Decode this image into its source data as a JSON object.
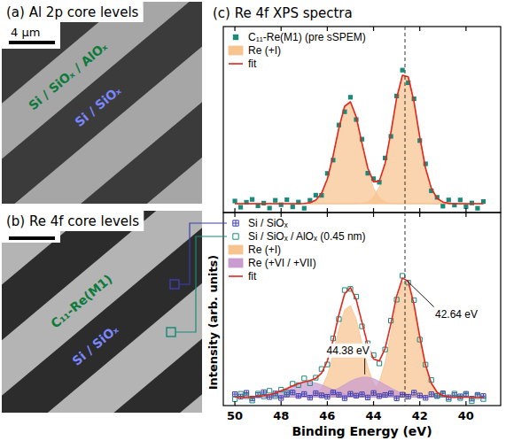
{
  "images": [
    {
      "label": "(a) Al 2p core levels",
      "scale_bar": "4 µm",
      "regions": [
        "Si / SiOₓ / AlOₓ",
        "Si / SiOₓ"
      ]
    },
    {
      "label": "(b) Re 4f core levels",
      "regions": [
        "C₁₁-Re(M1)",
        "Si / SiOₓ"
      ]
    }
  ],
  "chart_data": [
    {
      "type": "line",
      "title": "(c) Re 4f XPS spectra",
      "ylabel": "Intensity (arb. units)",
      "x": [
        50,
        49.75,
        49.5,
        49.25,
        49,
        48.75,
        48.5,
        48.25,
        48,
        47.75,
        47.5,
        47.25,
        47,
        46.75,
        46.5,
        46.25,
        46,
        45.75,
        45.5,
        45.25,
        45,
        44.75,
        44.5,
        44.25,
        44,
        43.75,
        43.5,
        43.25,
        43,
        42.75,
        42.5,
        42.25,
        42,
        41.75,
        41.5,
        41.25,
        41,
        40.75,
        40.5,
        40.25,
        40,
        39.75,
        39.5,
        39.25
      ],
      "xlim": [
        50.5,
        38.5
      ],
      "ylim": [
        -5,
        100
      ],
      "xticks": [
        50,
        48,
        46,
        44,
        42,
        40
      ],
      "tick_labels": false,
      "legend": "upper left",
      "series": [
        {
          "name": "C₁₁-Re(M1) (pre sSPEM)",
          "type": "scatter",
          "marker": "filled-square",
          "color": "#1b8a7a",
          "values": [
            1.5,
            -2.0,
            0.8,
            2.4,
            -1.2,
            0.3,
            -2.5,
            1.9,
            -0.6,
            2.2,
            -1.8,
            0.9,
            -2.6,
            1.9,
            4.8,
            4.7,
            17.1,
            24.6,
            44.4,
            51.9,
            60.1,
            47.5,
            36.4,
            17.2,
            14.1,
            12.1,
            25.8,
            38.0,
            60.8,
            75.4,
            68.3,
            59.2,
            35.6,
            22.5,
            7.3,
            3.6,
            -1.4,
            2.1,
            -0.8,
            2.1,
            -1.7,
            0.4,
            -2.6,
            1.2
          ]
        },
        {
          "name": "Re (+I)",
          "type": "area",
          "color": "#f7c38f",
          "values": [
            0,
            0,
            0,
            0,
            0,
            0,
            0,
            0,
            0,
            0,
            0,
            0,
            0.1,
            0.5,
            2.0,
            5.8,
            13.9,
            27.0,
            42.7,
            55.0,
            57.5,
            49.0,
            33.9,
            19.1,
            8.8,
            3.2,
            1.0,
            0.2,
            0,
            0,
            0,
            0,
            0,
            0,
            0,
            0,
            0,
            0,
            0,
            0,
            0,
            0,
            0,
            0
          ]
        },
        {
          "name": "Re (+I)",
          "type": "area",
          "color": "#f7c38f",
          "values": [
            0,
            0,
            0,
            0,
            0,
            0,
            0,
            0,
            0,
            0,
            0,
            0,
            0,
            0,
            0,
            0,
            0,
            0,
            0,
            0,
            0,
            0,
            0.2,
            1.0,
            3.5,
            9.6,
            21.8,
            40.0,
            59.7,
            72.5,
            71.6,
            57.6,
            37.6,
            20.0,
            8.7,
            3.0,
            0.9,
            0.2,
            0,
            0,
            0,
            0,
            0,
            0
          ]
        },
        {
          "name": "fit",
          "type": "line",
          "color": "#e3261b",
          "values": [
            0,
            0,
            0,
            0,
            0,
            0,
            0,
            0,
            0,
            0,
            0,
            0,
            0.1,
            0.5,
            2.0,
            5.8,
            13.9,
            27.0,
            42.7,
            55.0,
            57.5,
            49.0,
            34.1,
            20.1,
            12.3,
            12.8,
            22.8,
            40.2,
            59.7,
            72.5,
            71.6,
            57.6,
            37.6,
            20.0,
            8.7,
            3.0,
            0.9,
            0.2,
            0,
            0,
            0,
            0,
            0,
            0
          ]
        }
      ]
    },
    {
      "type": "line",
      "xlabel": "Binding Energy (eV)",
      "x": [
        50,
        49.75,
        49.5,
        49.25,
        49,
        48.75,
        48.5,
        48.25,
        48,
        47.75,
        47.5,
        47.25,
        47,
        46.75,
        46.5,
        46.25,
        46,
        45.75,
        45.5,
        45.25,
        45,
        44.75,
        44.5,
        44.25,
        44,
        43.75,
        43.5,
        43.25,
        43,
        42.75,
        42.5,
        42.25,
        42,
        41.75,
        41.5,
        41.25,
        41,
        40.75,
        40.5,
        40.25,
        40,
        39.75,
        39.5,
        39.25
      ],
      "xlim": [
        50.5,
        38.5
      ],
      "ylim": [
        -5,
        110
      ],
      "xticks": [
        50,
        48,
        46,
        44,
        42,
        40
      ],
      "tick_labels": "x",
      "legend": "upper left",
      "annotations": [
        {
          "text": "42.64 eV",
          "x": 42.64,
          "y": 70.5
        },
        {
          "text": "44.38 eV",
          "x": 44.38,
          "y": 12
        }
      ],
      "series": [
        {
          "name": "Si / SiOₓ",
          "type": "scatter",
          "marker": "crossed-square",
          "color": "#3c3cb0",
          "values": [
            1.8,
            0.4,
            2.6,
            -0.8,
            1.2,
            3.0,
            0.1,
            2.2,
            -0.5,
            1.6,
            2.8,
            0.7,
            1.9,
            -0.3,
            2.4,
            1.1,
            0.2,
            2.9,
            1.4,
            -0.6,
            2.0,
            0.9,
            1.7,
            -0.2,
            2.5,
            0.6,
            1.3,
            2.2,
            -0.7,
            1.5,
            0.3,
            2.7,
            1.0,
            -0.4,
            1.8,
            0.8,
            2.3,
            -0.1,
            1.2,
            0.5,
            2.0,
            -0.9,
            1.4,
            0.7
          ]
        },
        {
          "name": "Si / SiOₓ / AlOₓ (0.45 nm)",
          "type": "scatter",
          "marker": "open-square",
          "color": "#1b8a7a",
          "values": [
            -1.2,
            2.0,
            0.6,
            -2.0,
            2.1,
            0.5,
            3.8,
            0.6,
            4.5,
            2.8,
            8.0,
            7.2,
            11.2,
            8.3,
            11.6,
            16.8,
            19.5,
            35.0,
            46.5,
            63.8,
            64.5,
            59.9,
            42.2,
            32.1,
            25.1,
            20.1,
            28.4,
            45.6,
            58.1,
            72.3,
            68.2,
            57.8,
            34.3,
            19.4,
            10.2,
            0.7,
            1.6,
            -1.1,
            2.1,
            -0.5,
            1.5,
            -2.4,
            0.6,
            -1.1
          ]
        },
        {
          "name": "Re (+I)",
          "type": "area",
          "color": "#f7c38f",
          "values": [
            0,
            0,
            0,
            0,
            0,
            0,
            0,
            0,
            0,
            0,
            0,
            0,
            0.1,
            0.5,
            1.9,
            5.5,
            13.1,
            25.6,
            40.5,
            52.1,
            54.6,
            46.4,
            32.1,
            18.1,
            8.3,
            3.1,
            0.9,
            0.2,
            0,
            0,
            0,
            0,
            0,
            0,
            0,
            0,
            0,
            0,
            0,
            0,
            0,
            0,
            0,
            0
          ]
        },
        {
          "name": "Re (+I)",
          "type": "area",
          "color": "#f7c38f",
          "values": [
            0,
            0,
            0,
            0,
            0,
            0,
            0,
            0,
            0,
            0,
            0,
            0,
            0,
            0,
            0,
            0,
            0,
            0,
            0,
            0,
            0,
            0,
            0.2,
            1.0,
            3.3,
            9.1,
            20.7,
            37.9,
            56.5,
            68.6,
            67.8,
            54.5,
            35.6,
            18.9,
            8.2,
            2.9,
            0.8,
            0.2,
            0,
            0,
            0,
            0,
            0,
            0
          ]
        },
        {
          "name": "Re (+VI / +VII)",
          "type": "area",
          "color": "#c99bd0",
          "values": [
            0,
            0,
            0,
            0,
            0,
            0,
            0,
            0,
            0,
            0,
            0,
            0.1,
            0.2,
            0.4,
            0.8,
            1.4,
            2.4,
            3.8,
            5.5,
            7.5,
            9.5,
            11.0,
            11.9,
            11.9,
            11.0,
            9.4,
            7.4,
            5.5,
            3.7,
            2.3,
            1.4,
            0.7,
            0.4,
            0.2,
            0.1,
            0,
            0,
            0,
            0,
            0,
            0,
            0,
            0,
            0
          ]
        },
        {
          "name": "Re (+VI / +VII)",
          "type": "area",
          "color": "#c99bd0",
          "values": [
            0,
            0,
            0.1,
            0.2,
            0.5,
            0.9,
            1.5,
            2.5,
            3.8,
            5.2,
            6.7,
            8.0,
            8.8,
            9.0,
            8.5,
            7.4,
            6.0,
            4.5,
            3.1,
            2.0,
            1.2,
            0.7,
            0.3,
            0.2,
            0.1,
            0,
            0,
            0,
            0,
            0,
            0,
            0,
            0,
            0,
            0,
            0,
            0,
            0,
            0,
            0,
            0,
            0,
            0,
            0
          ]
        },
        {
          "name": "fit",
          "type": "line",
          "color": "#e3261b",
          "values": [
            0,
            0,
            0.1,
            0.2,
            0.5,
            0.9,
            1.5,
            2.5,
            3.8,
            5.2,
            6.7,
            8.1,
            9.1,
            9.9,
            11.2,
            14.3,
            21.5,
            33.9,
            49.1,
            61.6,
            65.3,
            58.1,
            44.5,
            31.2,
            22.7,
            21.6,
            29.0,
            43.6,
            60.2,
            70.9,
            69.2,
            55.2,
            36.0,
            19.1,
            8.3,
            2.9,
            0.8,
            0.2,
            0,
            0,
            0,
            0,
            0,
            0
          ]
        }
      ]
    }
  ]
}
